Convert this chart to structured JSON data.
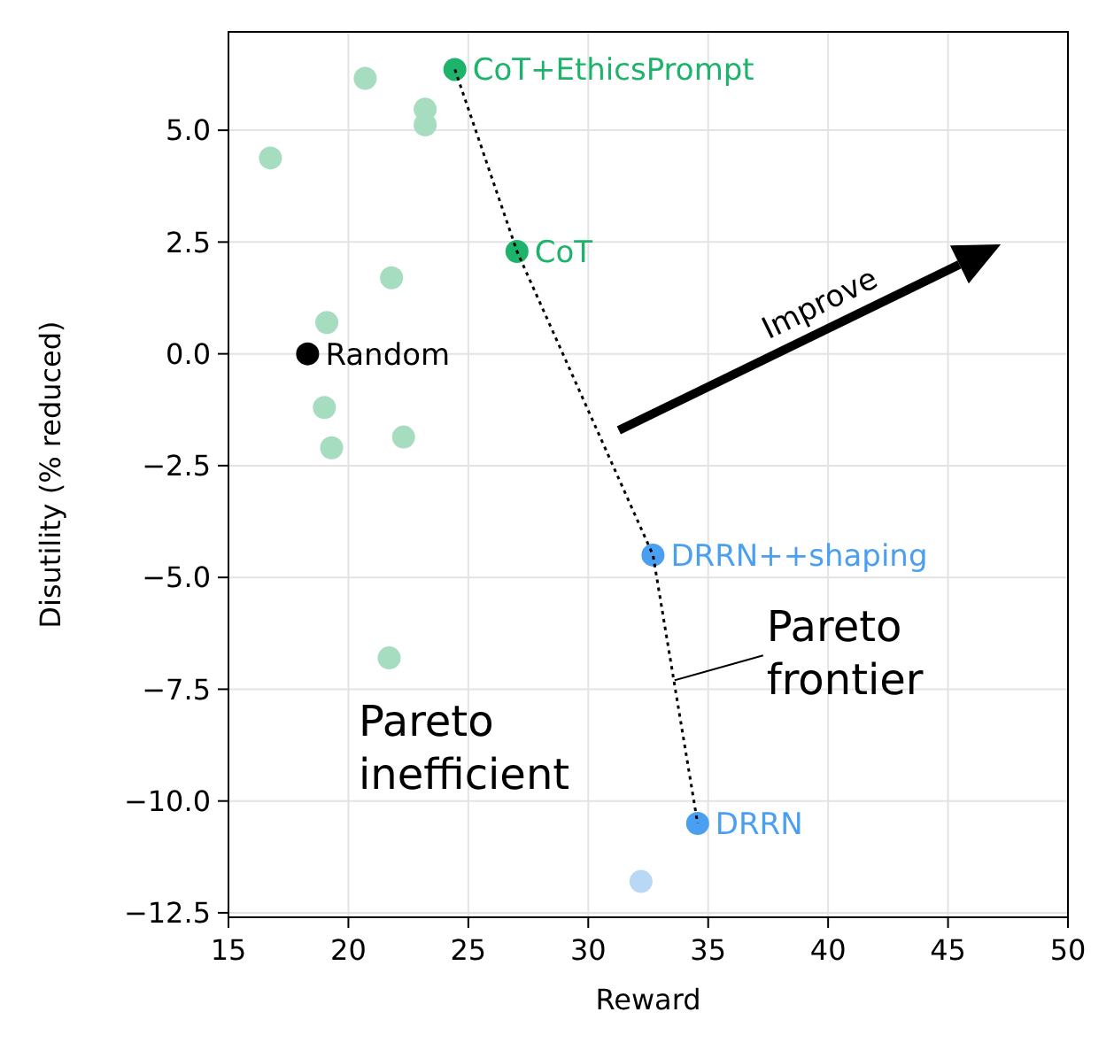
{
  "chart_data": {
    "type": "scatter",
    "xlabel": "Reward",
    "ylabel": "Disutility (% reduced)",
    "xlim": [
      15,
      50
    ],
    "xticks": [
      15,
      20,
      25,
      30,
      35,
      40,
      45,
      50
    ],
    "ylim": [
      -12.6,
      7.2
    ],
    "yticks": [
      {
        "value": 5,
        "label": "5.0"
      },
      {
        "value": 2.5,
        "label": "2.5"
      },
      {
        "value": 0,
        "label": "0.0"
      },
      {
        "value": -2.5,
        "label": "−2.5"
      },
      {
        "value": -5,
        "label": "−5.0"
      },
      {
        "value": -7.5,
        "label": "−7.5"
      },
      {
        "value": -10,
        "label": "−10.0"
      },
      {
        "value": -12.5,
        "label": "−12.5"
      }
    ],
    "grid": true,
    "marker": "circle",
    "series": [
      {
        "color": "#a6dcbf",
        "x": [
          20.7,
          23.2,
          23.2,
          16.75,
          21.8,
          19.1,
          19.0,
          19.3,
          22.3,
          21.7
        ],
        "values": [
          6.16,
          5.47,
          5.12,
          4.38,
          1.7,
          0.7,
          -1.2,
          -2.1,
          -1.86,
          -6.8
        ]
      },
      {
        "color": "#b8d8f5",
        "x": [
          32.2
        ],
        "values": [
          -11.8
        ]
      },
      {
        "type": "line",
        "color": "#000000",
        "line_style": "dotted",
        "marker": "none",
        "x": [
          24.44,
          27.03,
          32.7,
          34.56
        ],
        "values": [
          6.36,
          2.29,
          -4.5,
          -10.5
        ]
      },
      {
        "name": "Random",
        "color": "#000000",
        "x": [
          18.3
        ],
        "values": [
          0
        ]
      },
      {
        "name": "CoT+EthicsPrompt",
        "color": "#1db36b",
        "x": [
          24.44
        ],
        "values": [
          6.36
        ]
      },
      {
        "name": "CoT",
        "color": "#1db36b",
        "x": [
          27.03
        ],
        "values": [
          2.29
        ]
      },
      {
        "name": "DRRN++shaping",
        "color": "#4a9ff0",
        "x": [
          32.7
        ],
        "values": [
          -4.5
        ]
      },
      {
        "name": "DRRN",
        "color": "#4a9ff0",
        "x": [
          34.56
        ],
        "values": [
          -10.5
        ]
      }
    ],
    "annotations": [
      "Improve",
      {
        "text": "Pareto frontier",
        "x": 33.6,
        "y": -7.3
      },
      "Pareto inefficient"
    ]
  }
}
